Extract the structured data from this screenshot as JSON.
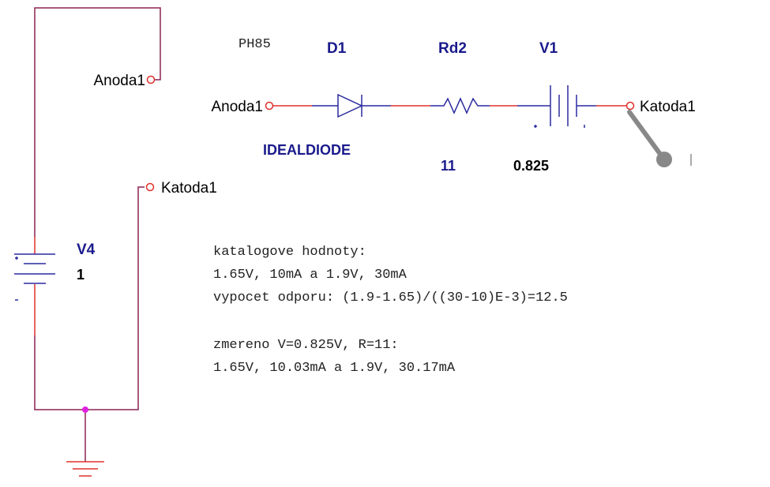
{
  "title": "PH85",
  "components": [
    {
      "ref": "D1",
      "value": "IDEALDIODE"
    },
    {
      "ref": "Rd2",
      "value": "11"
    },
    {
      "ref": "V1",
      "value": "0.825"
    },
    {
      "ref": "V4",
      "value": "1"
    }
  ],
  "ports": [
    {
      "label": "Anoda1"
    },
    {
      "label": "Anoda1"
    },
    {
      "label": "Katoda1"
    },
    {
      "label": "Katoda1"
    }
  ],
  "notes": [
    "katalogove hodnoty:",
    "1.65V, 10mA a 1.9V, 30mA",
    "vypocet odporu: (1.9-1.65)/((30-10)E-3)=12.5",
    "zmereno V=0.825V, R=11:",
    "1.65V, 10.03mA a 1.9V, 30.17mA"
  ]
}
